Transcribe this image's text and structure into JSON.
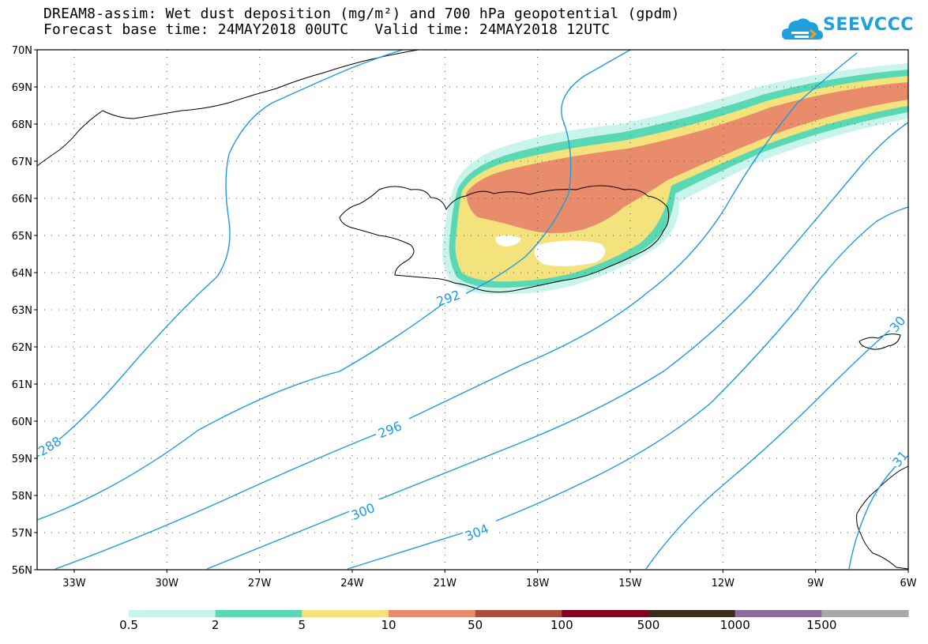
{
  "header": {
    "title_line1": "DREAM8-assim: Wet dust deposition (mg/m²) and 700 hPa geopotential (gpdm)",
    "title_line2": "Forecast base time: 24MAY2018 00UTC   Valid time: 24MAY2018 12UTC",
    "logo_text": "SEEVCCC"
  },
  "map": {
    "latitude_labels": [
      "70N",
      "69N",
      "68N",
      "67N",
      "66N",
      "65N",
      "64N",
      "63N",
      "62N",
      "61N",
      "60N",
      "59N",
      "58N",
      "57N",
      "56N"
    ],
    "longitude_labels": [
      "33W",
      "30W",
      "27W",
      "24W",
      "21W",
      "18W",
      "15W",
      "12W",
      "9W",
      "6W"
    ],
    "contour_color": "#1e9be0",
    "contour_labels": [
      "288",
      "292",
      "296",
      "300",
      "304",
      "30",
      "31"
    ]
  },
  "legend": {
    "bins": [
      {
        "color": "#c8f4ec",
        "label": "0.5"
      },
      {
        "color": "#5ad8b4",
        "label": "2"
      },
      {
        "color": "#f4e27c",
        "label": "5"
      },
      {
        "color": "#e88c6c",
        "label": "10"
      },
      {
        "color": "#ac4c3c",
        "label": "50"
      },
      {
        "color": "#84001c",
        "label": "100"
      },
      {
        "color": "#3c2c1c",
        "label": "500"
      },
      {
        "color": "#8c6c9c",
        "label": "1000"
      },
      {
        "color": "#a8a8a8",
        "label": "1500"
      }
    ]
  }
}
